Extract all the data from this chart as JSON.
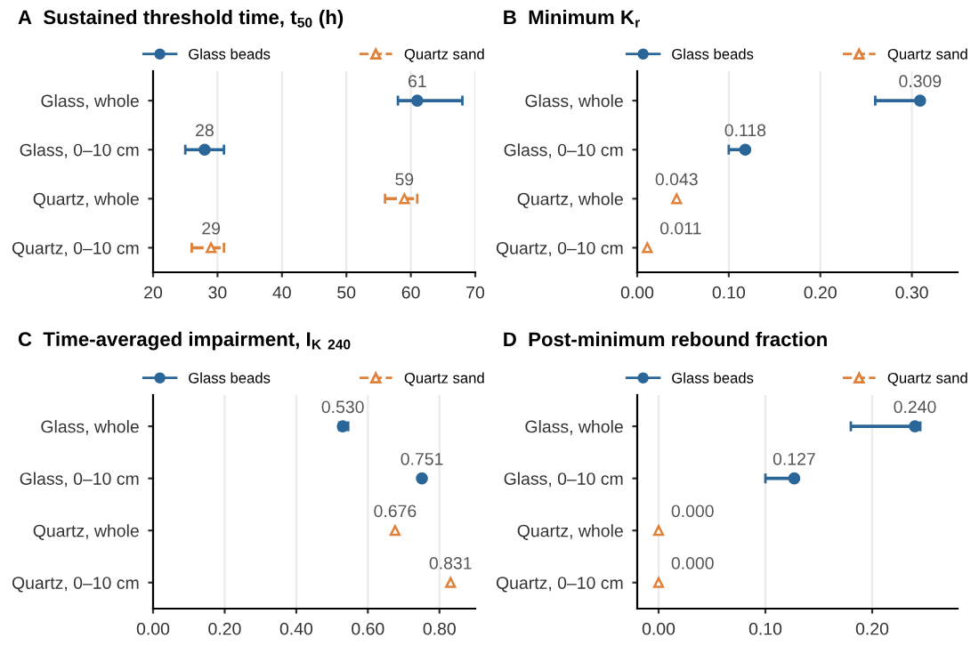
{
  "chart_data": [
    {
      "type": "scatter",
      "orientation": "horizontal",
      "title": "A  Sustained threshold time, t$_{50}$ (h)",
      "categories": [
        "Glass, whole",
        "Glass, 0–10 cm",
        "Quartz, whole",
        "Quartz, 0–10 cm"
      ],
      "xlim": [
        20,
        70
      ],
      "xticks": [
        20,
        30,
        40,
        50,
        60,
        70
      ],
      "grid": "x",
      "legend": "top",
      "series": [
        {
          "name": "Glass beads",
          "color": "#2b6699",
          "marker": "circle",
          "line_style": "solid",
          "values": [
            61,
            28,
            null,
            null
          ],
          "errors": [
            [
              58,
              68
            ],
            [
              25,
              31
            ],
            null,
            null
          ],
          "value_labels": [
            "61",
            "28",
            null,
            null
          ]
        },
        {
          "name": "Quartz sand",
          "color": "#e0813a",
          "marker": "triangle",
          "line_style": "dashed",
          "values": [
            null,
            null,
            59,
            29
          ],
          "errors": [
            null,
            null,
            [
              56,
              61
            ],
            [
              26,
              31
            ]
          ],
          "value_labels": [
            null,
            null,
            "59",
            "29"
          ]
        }
      ]
    },
    {
      "type": "scatter",
      "orientation": "horizontal",
      "title": "B  Minimum K$_{r}$",
      "categories": [
        "Glass, whole",
        "Glass, 0–10 cm",
        "Quartz, whole",
        "Quartz, 0–10 cm"
      ],
      "xlim": [
        0,
        0.35
      ],
      "xticks": [
        {
          "value": 0,
          "label": "0.00"
        },
        {
          "value": 0.1,
          "label": "0.10"
        },
        {
          "value": 0.2,
          "label": "0.20"
        },
        {
          "value": 0.3,
          "label": "0.30"
        }
      ],
      "grid": "x",
      "legend": "top",
      "series": [
        {
          "name": "Glass beads",
          "color": "#2b6699",
          "marker": "circle",
          "line_style": "solid",
          "values": [
            0.309,
            0.118,
            null,
            null
          ],
          "errors": [
            [
              0.26,
              0.31
            ],
            [
              0.1,
              0.12
            ],
            null,
            null
          ],
          "value_labels": [
            "0.309",
            "0.118",
            null,
            null
          ]
        },
        {
          "name": "Quartz sand",
          "color": "#e0813a",
          "marker": "triangle",
          "line_style": "dashed",
          "values": [
            null,
            null,
            0.043,
            0.011
          ],
          "value_labels": [
            null,
            null,
            "0.043",
            "0.011"
          ]
        }
      ]
    },
    {
      "type": "scatter",
      "orientation": "horizontal",
      "title": "C  Time-averaged impairment, I$_{K}$ $_{240}$",
      "categories": [
        "Glass, whole",
        "Glass, 0–10 cm",
        "Quartz, whole",
        "Quartz, 0–10 cm"
      ],
      "xlim": [
        0,
        0.9
      ],
      "xticks": [
        {
          "value": 0,
          "label": "0.00"
        },
        {
          "value": 0.2,
          "label": "0.20"
        },
        {
          "value": 0.4,
          "label": "0.40"
        },
        {
          "value": 0.6,
          "label": "0.60"
        },
        {
          "value": 0.8,
          "label": "0.80"
        }
      ],
      "grid": "x",
      "legend": "top",
      "series": [
        {
          "name": "Glass beads",
          "color": "#2b6699",
          "marker": "circle",
          "line_style": "solid",
          "values": [
            0.53,
            0.751,
            null,
            null
          ],
          "errors": [
            [
              0.52,
              0.545
            ],
            null,
            null,
            null
          ],
          "value_labels": [
            "0.530",
            "0.751",
            null,
            null
          ]
        },
        {
          "name": "Quartz sand",
          "color": "#e0813a",
          "marker": "triangle",
          "line_style": "dashed",
          "values": [
            null,
            null,
            0.676,
            0.831
          ],
          "value_labels": [
            null,
            null,
            "0.676",
            "0.831"
          ]
        }
      ]
    },
    {
      "type": "scatter",
      "orientation": "horizontal",
      "title": "D  Post-minimum rebound fraction",
      "categories": [
        "Glass, whole",
        "Glass, 0–10 cm",
        "Quartz, whole",
        "Quartz, 0–10 cm"
      ],
      "xlim": [
        -0.02,
        0.28
      ],
      "xticks": [
        {
          "value": 0,
          "label": "0.00"
        },
        {
          "value": 0.1,
          "label": "0.10"
        },
        {
          "value": 0.2,
          "label": "0.20"
        }
      ],
      "grid": "x",
      "legend": "top",
      "series": [
        {
          "name": "Glass beads",
          "color": "#2b6699",
          "marker": "circle",
          "line_style": "solid",
          "values": [
            0.24,
            0.127,
            null,
            null
          ],
          "errors": [
            [
              0.18,
              0.245
            ],
            [
              0.1,
              0.127
            ],
            null,
            null
          ],
          "value_labels": [
            "0.240",
            "0.127",
            null,
            null
          ]
        },
        {
          "name": "Quartz sand",
          "color": "#e0813a",
          "marker": "triangle",
          "line_style": "dashed",
          "values": [
            null,
            null,
            0,
            0
          ],
          "value_labels": [
            null,
            null,
            "0.000",
            "0.000"
          ]
        }
      ]
    }
  ]
}
